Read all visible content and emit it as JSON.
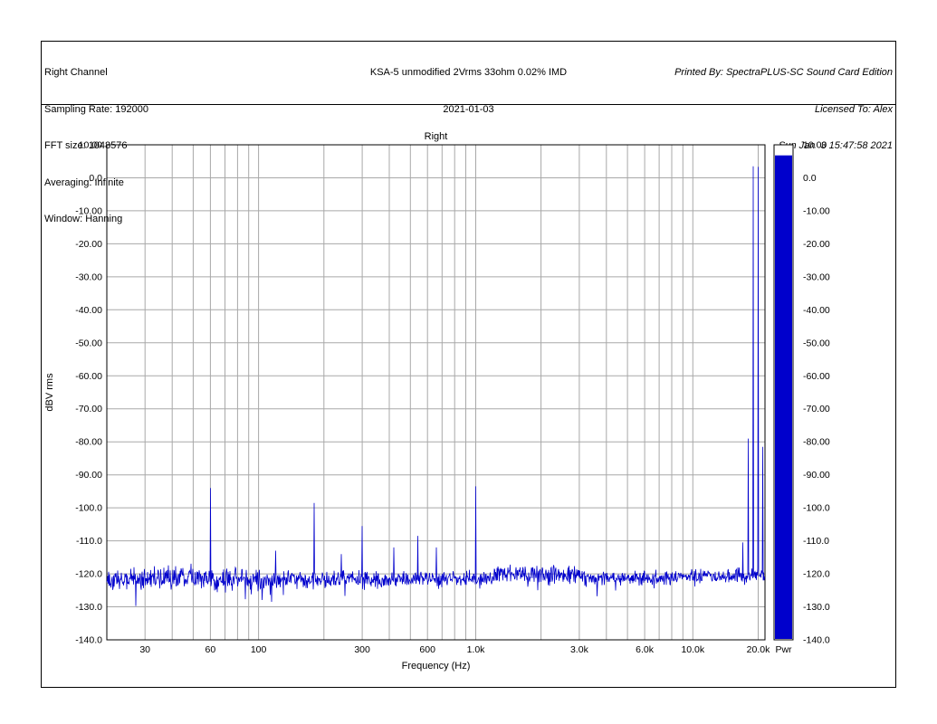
{
  "header": {
    "left": {
      "line1": "Right Channel",
      "line2": "Sampling Rate: 192000",
      "line3": "FFT size: 1048576",
      "line4": "Averaging: Infinite",
      "line5": "Window: Hanning"
    },
    "center": {
      "line1": "KSA-5 unmodified 2Vrms 33ohm 0.02% IMD",
      "line2": "2021-01-03"
    },
    "right": {
      "line1": "Printed By: SpectraPLUS-SC Sound Card Edition",
      "line2": "Licensed To: Alex",
      "line3": "Sun Jan  3 15:47:58 2021"
    }
  },
  "chart_data": {
    "type": "line",
    "title": "Right",
    "xlabel": "Frequency (Hz)",
    "ylabel": "dBV rms",
    "x_scale": "log",
    "x_range_hz": [
      20,
      21500
    ],
    "ylim": [
      -140,
      10
    ],
    "y_tick_values": [
      10,
      0,
      -10,
      -20,
      -30,
      -40,
      -50,
      -60,
      -70,
      -80,
      -90,
      -100,
      -110,
      -120,
      -130,
      -140
    ],
    "y_tick_labels": [
      "10.00",
      "0.0",
      "-10.00",
      "-20.00",
      "-30.00",
      "-40.00",
      "-50.00",
      "-60.00",
      "-70.00",
      "-80.00",
      "-90.00",
      "-100.0",
      "-110.0",
      "-120.0",
      "-130.0",
      "-140.0"
    ],
    "x_tick_values": [
      30,
      60,
      100,
      300,
      600,
      1000,
      3000,
      6000,
      10000,
      20000
    ],
    "x_tick_labels": [
      "30",
      "60",
      "100",
      "300",
      "600",
      "1.0k",
      "3.0k",
      "6.0k",
      "10.0k",
      "20.0k"
    ],
    "x_grid_hz": [
      30,
      40,
      50,
      60,
      70,
      80,
      90,
      100,
      200,
      300,
      400,
      500,
      600,
      700,
      800,
      900,
      1000,
      2000,
      3000,
      4000,
      5000,
      6000,
      7000,
      8000,
      9000,
      10000,
      20000
    ],
    "grid_on": true,
    "trace_color": "#0000cc",
    "grid_color": "#a8a8a8",
    "noise_floor": {
      "mean_db": -121.5,
      "spread_db": 3.2,
      "seed": 1337,
      "note": "broadband noise floor ~-121 dBV, wider spread (+/-6 dB, dips to -133) below ~300 Hz"
    },
    "ripple_region": {
      "from_hz": 1200,
      "to_hz": 3200,
      "boost_db": 3
    },
    "peaks": [
      {
        "hz": 60,
        "db": -94.0
      },
      {
        "hz": 120,
        "db": -113.0
      },
      {
        "hz": 180,
        "db": -98.5
      },
      {
        "hz": 240,
        "db": -114.0
      },
      {
        "hz": 300,
        "db": -105.5
      },
      {
        "hz": 420,
        "db": -112.0
      },
      {
        "hz": 540,
        "db": -108.5
      },
      {
        "hz": 660,
        "db": -112.0
      },
      {
        "hz": 1000,
        "db": -93.5
      },
      {
        "hz": 17000,
        "db": -110.5
      },
      {
        "hz": 18000,
        "db": -79.0
      },
      {
        "hz": 19000,
        "db": 3.5
      },
      {
        "hz": 20000,
        "db": 3.3
      },
      {
        "hz": 21000,
        "db": -81.5
      }
    ],
    "power_bar": {
      "label": "Pwr",
      "value_db": 6.8,
      "color": "#0000cc"
    }
  }
}
